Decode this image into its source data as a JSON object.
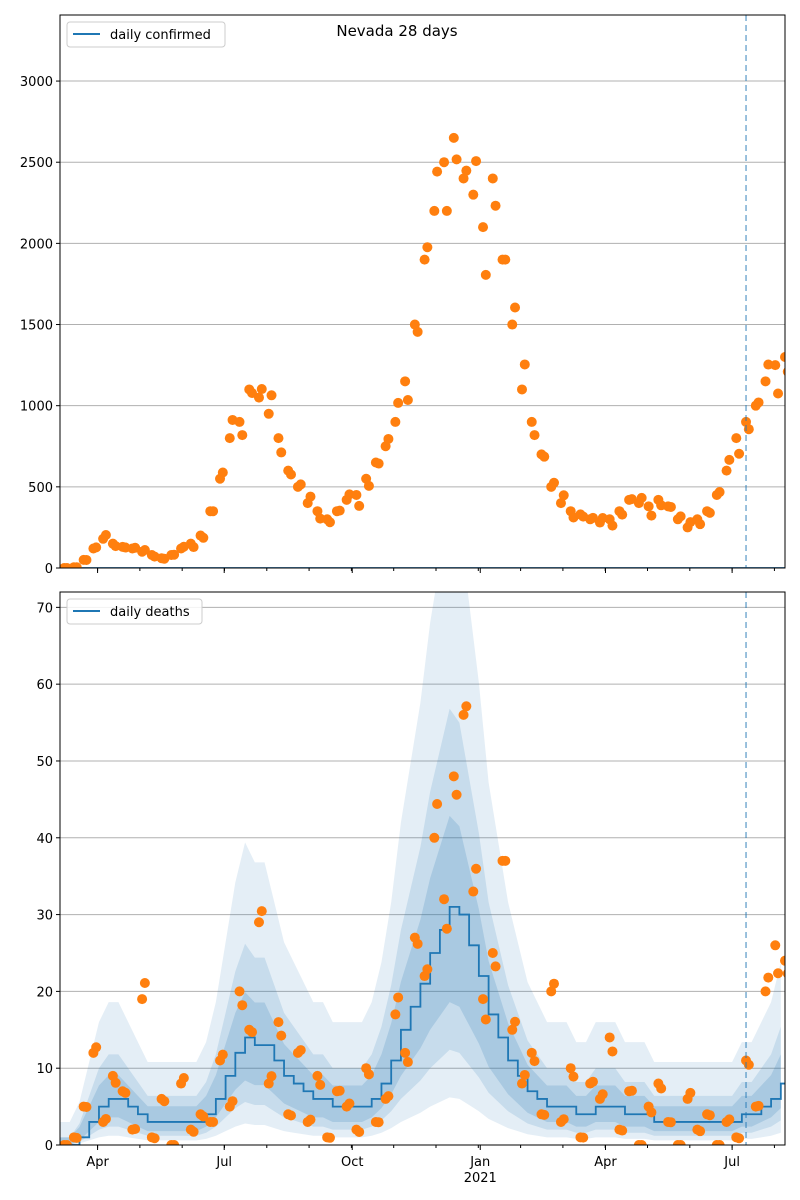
{
  "title": "Nevada 28 days",
  "colors": {
    "line": "#1f77b4",
    "points": "#ff7f0e",
    "band": "#1f77b4",
    "grid": "#b0b0b0",
    "dashed": "#1f77b4"
  },
  "chart_data": [
    {
      "type": "scatter",
      "panel": "top",
      "legend": "daily confirmed",
      "legend_placement": "top-left",
      "x_start": "2020-03-05",
      "x_step_days": 7,
      "x_days_total": 521,
      "ylim": [
        0,
        3407
      ],
      "yticks": [
        0,
        500,
        1000,
        1500,
        2000,
        2500,
        3000
      ],
      "grid": true,
      "forecast_start_day": 493,
      "points": [
        0,
        5,
        50,
        120,
        180,
        150,
        130,
        120,
        100,
        80,
        60,
        80,
        120,
        150,
        200,
        350,
        550,
        800,
        900,
        1100,
        1050,
        950,
        800,
        600,
        500,
        400,
        350,
        300,
        350,
        420,
        450,
        550,
        650,
        750,
        900,
        1150,
        1500,
        1900,
        2200,
        2500,
        2650,
        2400,
        2300,
        2100,
        2400,
        1900,
        1500,
        1100,
        900,
        700,
        500,
        400,
        350,
        330,
        300,
        280,
        300,
        350,
        420,
        400,
        380,
        420,
        380,
        300,
        250,
        300,
        350,
        450,
        600,
        800,
        900,
        1000,
        1150,
        1250,
        1300
      ],
      "line": [
        0,
        0,
        0,
        0,
        0,
        0,
        0,
        0,
        0,
        0,
        0,
        0,
        0,
        0,
        0,
        0,
        0,
        0,
        0,
        0,
        0,
        0,
        0,
        0,
        0,
        0,
        0,
        0,
        0,
        0,
        0,
        0,
        0,
        0,
        0,
        0,
        0,
        0,
        0,
        0,
        0,
        0,
        0,
        0,
        0,
        0,
        0,
        0,
        0,
        0,
        0,
        0,
        0,
        0,
        0,
        0,
        0,
        0,
        0,
        0,
        0,
        0,
        0,
        0,
        0,
        0,
        0,
        0,
        0,
        0,
        0,
        0,
        0,
        0,
        0
      ]
    },
    {
      "type": "line",
      "panel": "bottom",
      "legend": "daily deaths",
      "legend_placement": "top-left",
      "x_start": "2020-03-05",
      "x_step_days": 7,
      "x_days_total": 521,
      "ylim": [
        0,
        72
      ],
      "yticks": [
        0,
        10,
        20,
        30,
        40,
        50,
        60,
        70
      ],
      "xticks": [
        {
          "label": "Apr",
          "day": 27
        },
        {
          "label": "Jul",
          "day": 118
        },
        {
          "label": "Oct",
          "day": 210
        },
        {
          "label": "Jan",
          "day": 302,
          "sublabel": "2021"
        },
        {
          "label": "Apr",
          "day": 392
        },
        {
          "label": "Jul",
          "day": 483
        }
      ],
      "grid": true,
      "forecast_start_day": 493,
      "line": [
        0,
        0,
        1,
        3,
        5,
        6,
        6,
        5,
        4,
        3,
        3,
        3,
        3,
        3,
        3,
        4,
        6,
        9,
        12,
        14,
        13,
        13,
        11,
        9,
        8,
        7,
        6,
        6,
        5,
        5,
        5,
        5,
        6,
        8,
        11,
        15,
        18,
        21,
        25,
        28,
        31,
        30,
        26,
        22,
        17,
        14,
        11,
        9,
        7,
        6,
        5,
        5,
        5,
        4,
        4,
        5,
        5,
        5,
        4,
        4,
        4,
        3,
        3,
        3,
        3,
        3,
        3,
        3,
        3,
        3,
        4,
        4,
        5,
        6,
        8
      ],
      "points": [
        0,
        1,
        5,
        12,
        3,
        9,
        7,
        2,
        19,
        1,
        6,
        0,
        8,
        2,
        4,
        3,
        11,
        5,
        20,
        15,
        29,
        8,
        16,
        4,
        12,
        3,
        9,
        1,
        7,
        5,
        2,
        10,
        3,
        6,
        17,
        12,
        27,
        22,
        40,
        32,
        48,
        56,
        33,
        19,
        25,
        37,
        15,
        8,
        12,
        4,
        20,
        3,
        10,
        1,
        8,
        6,
        14,
        2,
        7,
        0,
        5,
        8,
        3,
        0,
        6,
        2,
        4,
        0,
        3,
        1,
        11,
        5,
        20,
        26,
        24
      ]
    }
  ]
}
